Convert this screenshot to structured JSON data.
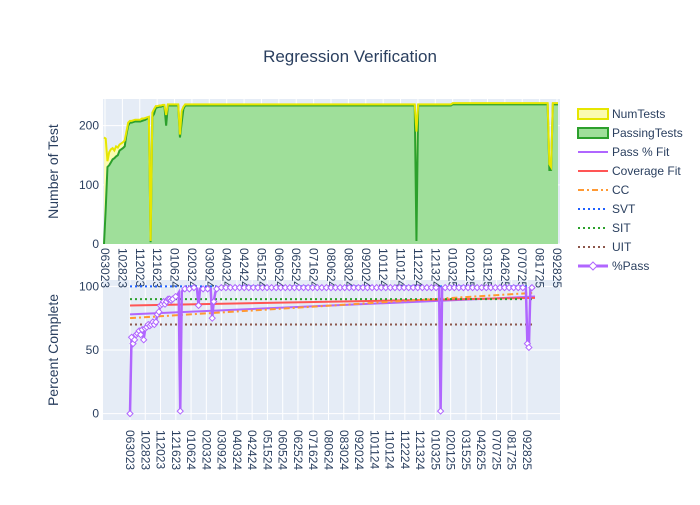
{
  "chart_data": {
    "title": "Regression Verification",
    "subplots": [
      {
        "type": "area",
        "ylabel": "Number of Test",
        "ylim": [
          0,
          245
        ],
        "yticks": [
          0,
          100,
          200
        ],
        "series": [
          {
            "name": "NumTests",
            "color": "#e6e600",
            "values": [
              180,
              178,
              140,
              155,
              160,
              162,
              158,
              165,
              163,
              168,
              170,
              172,
              175,
              190,
              205,
              208,
              208,
              209,
              210,
              210,
              210,
              210,
              212,
              212,
              213,
              214,
              215,
              5,
              222,
              228,
              233,
              233,
              234,
              234,
              235,
              235,
              218,
              236,
              236,
              236,
              236,
              236,
              236,
              236,
              185,
              225,
              232,
              236,
              236,
              236,
              236,
              236,
              236,
              236,
              236,
              236,
              236,
              236,
              236,
              236,
              236,
              236,
              236,
              236,
              236,
              236,
              236,
              236,
              236,
              236,
              236,
              236,
              236,
              236,
              236,
              236,
              236,
              236,
              236,
              236,
              236,
              236,
              236,
              236,
              236,
              236,
              236,
              236,
              236,
              236,
              236,
              236,
              236,
              236,
              236,
              236,
              236,
              236,
              236,
              236,
              236,
              236,
              236,
              236,
              236,
              236,
              236,
              236,
              236,
              236,
              236,
              236,
              236,
              236,
              236,
              236,
              236,
              236,
              236,
              236,
              236,
              236,
              236,
              236,
              236,
              236,
              236,
              236,
              236,
              236,
              236,
              236,
              236,
              236,
              236,
              236,
              236,
              236,
              236,
              236,
              236,
              236,
              236,
              236,
              236,
              236,
              236,
              236,
              236,
              236,
              236,
              236,
              236,
              236,
              236,
              236,
              236,
              236,
              236,
              236,
              236,
              236,
              236,
              236,
              236,
              236,
              236,
              236,
              236,
              236,
              236,
              236,
              236,
              236,
              236,
              236,
              236,
              236,
              236,
              236,
              236,
              190,
              236,
              236,
              236,
              236,
              236,
              236,
              236,
              236,
              236,
              236,
              236,
              236,
              236,
              236,
              236,
              236,
              236,
              236,
              236,
              236,
              238,
              238,
              238,
              238,
              238,
              238,
              238,
              238,
              238,
              238,
              238,
              238,
              238,
              238,
              238,
              238,
              238,
              238,
              238,
              238,
              238,
              238,
              238,
              238,
              238,
              238,
              238,
              238,
              238,
              238,
              238,
              238,
              238,
              238,
              238,
              238,
              238,
              238,
              238,
              238,
              238,
              238,
              238,
              238,
              238,
              238,
              238,
              238,
              238,
              238,
              238,
              238,
              238,
              238,
              238,
              238,
              135,
              130,
              238,
              238,
              238,
              238
            ]
          },
          {
            "name": "PassingTests",
            "color": "#2ca02c",
            "values": [
              0,
              60,
              130,
              133,
              138,
              143,
              145,
              148,
              150,
              158,
              160,
              162,
              165,
              185,
              200,
              205,
              205,
              206,
              207,
              207,
              207,
              207,
              208,
              209,
              210,
              212,
              213,
              3,
              215,
              220,
              230,
              231,
              232,
              232,
              233,
              233,
              200,
              234,
              234,
              234,
              234,
              234,
              234,
              234,
              180,
              205,
              228,
              234,
              234,
              234,
              234,
              234,
              234,
              234,
              234,
              234,
              234,
              234,
              234,
              234,
              234,
              234,
              234,
              234,
              234,
              234,
              234,
              234,
              234,
              234,
              234,
              234,
              234,
              234,
              234,
              234,
              234,
              234,
              234,
              234,
              234,
              234,
              234,
              234,
              234,
              234,
              234,
              234,
              234,
              234,
              234,
              234,
              234,
              234,
              234,
              234,
              234,
              234,
              234,
              234,
              234,
              234,
              234,
              234,
              234,
              234,
              234,
              234,
              234,
              234,
              234,
              234,
              234,
              234,
              234,
              234,
              234,
              234,
              234,
              234,
              234,
              234,
              234,
              234,
              234,
              234,
              234,
              234,
              234,
              234,
              234,
              234,
              234,
              234,
              234,
              234,
              234,
              234,
              234,
              234,
              234,
              234,
              234,
              234,
              234,
              234,
              234,
              234,
              234,
              234,
              234,
              234,
              234,
              234,
              234,
              234,
              234,
              234,
              234,
              234,
              234,
              234,
              234,
              234,
              234,
              234,
              234,
              234,
              234,
              234,
              234,
              234,
              234,
              234,
              234,
              234,
              234,
              234,
              234,
              234,
              234,
              5,
              234,
              234,
              234,
              234,
              234,
              234,
              234,
              234,
              234,
              234,
              234,
              234,
              234,
              234,
              234,
              234,
              234,
              234,
              234,
              234,
              236,
              236,
              236,
              236,
              236,
              236,
              236,
              236,
              236,
              236,
              236,
              236,
              236,
              236,
              236,
              236,
              236,
              236,
              236,
              236,
              236,
              236,
              236,
              236,
              236,
              236,
              236,
              236,
              236,
              236,
              236,
              236,
              236,
              236,
              236,
              236,
              236,
              236,
              236,
              236,
              236,
              236,
              236,
              236,
              236,
              236,
              236,
              236,
              236,
              236,
              236,
              236,
              236,
              236,
              236,
              236,
              125,
              125,
              236,
              236,
              236,
              236
            ]
          }
        ]
      },
      {
        "type": "line",
        "ylabel": "Percent Complete",
        "ylim": [
          -5,
          105
        ],
        "yticks": [
          0,
          50,
          100
        ],
        "series": [
          {
            "name": "Pass % Fit",
            "color": "#b066ff",
            "style": "solid",
            "values": [
              78,
              92
            ]
          },
          {
            "name": "Coverage Fit",
            "color": "#ff5555",
            "style": "solid",
            "values": [
              85,
              91
            ]
          },
          {
            "name": "CC",
            "color": "#ff9933",
            "style": "dashdot",
            "values": [
              75,
              95
            ]
          },
          {
            "name": "SVT",
            "color": "#1f60ff",
            "style": "dot",
            "values": [
              100,
              100
            ]
          },
          {
            "name": "SIT",
            "color": "#2ca02c",
            "style": "dot",
            "values": [
              90,
              90
            ]
          },
          {
            "name": "UIT",
            "color": "#8c564b",
            "style": "dot",
            "values": [
              70,
              70
            ]
          },
          {
            "name": "%Pass",
            "color": "#b066ff",
            "style": "markers",
            "values": [
              0,
              60,
              55,
              58,
              62,
              63,
              65,
              62,
              66,
              58,
              67,
              68,
              70,
              69,
              70,
              72,
              70,
              72,
              78,
              80,
              85,
              86,
              88,
              86,
              88,
              90,
              90,
              89,
              90,
              91,
              92,
              93,
              95,
              2,
              96,
              97,
              98,
              98,
              98,
              98,
              98,
              99,
              99,
              99,
              98,
              85,
              98,
              98,
              98,
              98,
              98,
              98,
              98,
              98,
              75,
              88,
              95,
              98,
              99,
              99,
              99,
              99,
              99,
              99,
              99,
              99,
              99,
              99,
              99,
              99,
              99,
              99,
              99,
              99,
              99,
              99,
              99,
              99,
              99,
              99,
              99,
              99,
              99,
              99,
              99,
              99,
              99,
              99,
              99,
              99,
              99,
              99,
              99,
              99,
              99,
              99,
              99,
              99,
              99,
              99,
              99,
              99,
              99,
              99,
              99,
              99,
              99,
              99,
              99,
              99,
              99,
              99,
              99,
              99,
              99,
              99,
              99,
              99,
              99,
              99,
              99,
              99,
              99,
              99,
              99,
              99,
              99,
              99,
              99,
              99,
              99,
              99,
              99,
              99,
              99,
              99,
              99,
              99,
              99,
              99,
              99,
              99,
              99,
              99,
              99,
              99,
              99,
              99,
              99,
              99,
              99,
              99,
              99,
              99,
              99,
              99,
              99,
              99,
              99,
              99,
              99,
              99,
              99,
              99,
              99,
              99,
              99,
              99,
              99,
              99,
              99,
              99,
              99,
              99,
              99,
              99,
              99,
              99,
              99,
              99,
              99,
              99,
              99,
              99,
              99,
              99,
              99,
              99,
              99,
              99,
              99,
              99,
              99,
              99,
              99,
              99,
              99,
              99,
              99,
              99,
              99,
              99,
              99,
              99,
              2,
              99,
              99,
              99,
              99,
              99,
              99,
              99,
              99,
              99,
              99,
              99,
              99,
              99,
              99,
              99,
              99,
              99,
              99,
              99,
              99,
              99,
              99,
              99,
              99,
              99,
              99,
              99,
              99,
              99,
              99,
              99,
              99,
              99,
              99,
              99,
              99,
              99,
              99,
              99,
              99,
              99,
              99,
              99,
              99,
              99,
              99,
              99,
              99,
              99,
              99,
              99,
              99,
              99,
              99,
              99,
              99,
              55,
              52,
              99,
              99,
              99,
              99
            ]
          }
        ]
      }
    ],
    "x_tick_labels": [
      "063023",
      "102823",
      "112023",
      "121623",
      "010624",
      "020324",
      "030924",
      "040324",
      "042424",
      "051524",
      "060524",
      "062524",
      "071624",
      "080624",
      "083024",
      "092024",
      "101124",
      "110124",
      "112224",
      "121324",
      "010325",
      "020125",
      "031525",
      "042625",
      "070725",
      "081725",
      "092825"
    ],
    "legend_position": "right"
  }
}
